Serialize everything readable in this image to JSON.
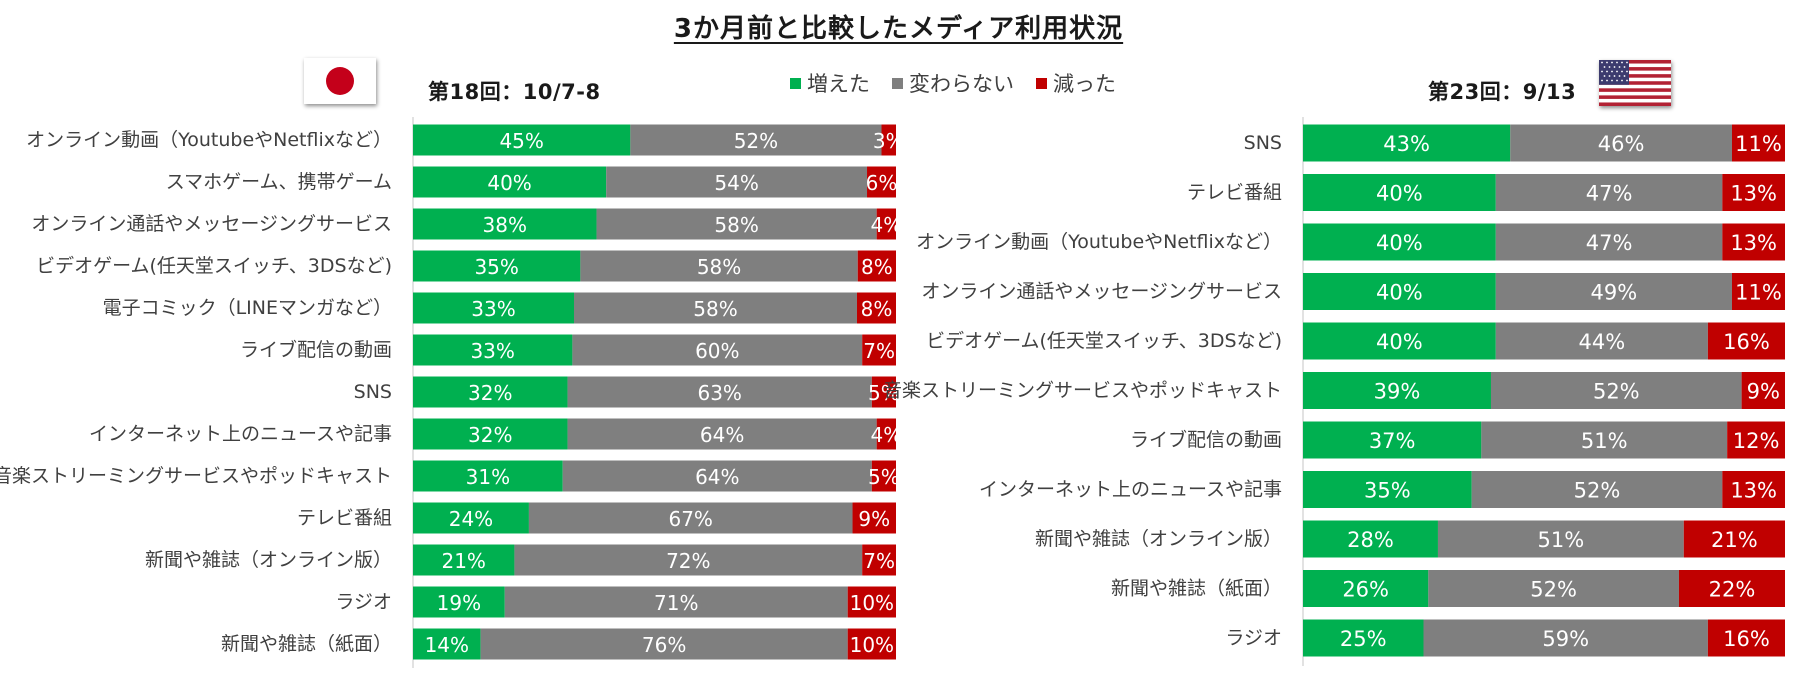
{
  "title": "3か月前と比較したメディア利用状況",
  "colors": {
    "increased": "#00b050",
    "unchanged": "#7f7f7f",
    "decreased": "#c00000",
    "axis": "#d9d9d9"
  },
  "legend": [
    {
      "label": "増えた",
      "color": "#00b050"
    },
    {
      "label": "変わらない",
      "color": "#7f7f7f"
    },
    {
      "label": "減った",
      "color": "#c00000"
    }
  ],
  "japan": {
    "round_label": "第18回：10/7-8",
    "flag_icon": "japan-flag-icon"
  },
  "usa": {
    "round_label": "第23回：9/13",
    "flag_icon": "us-flag-icon"
  },
  "chart_data": [
    {
      "type": "bar",
      "stacked": true,
      "orientation": "horizontal",
      "normalized_percent": true,
      "region": "japan",
      "categories": [
        "オンライン動画（YoutubeやNetflixなど）",
        "スマホゲーム、携帯ゲーム",
        "オンライン通話やメッセージングサービス",
        "ビデオゲーム(任天堂スイッチ、3DSなど)",
        "電子コミック（LINEマンガなど）",
        "ライブ配信の動画",
        "SNS",
        "インターネット上のニュースや記事",
        "音楽ストリーミングサービスやポッドキャスト",
        "テレビ番組",
        "新聞や雑誌（オンライン版）",
        "ラジオ",
        "新聞や雑誌（紙面）"
      ],
      "series": [
        {
          "name": "増えた",
          "color": "#00b050",
          "values": [
            45,
            40,
            38,
            35,
            33,
            33,
            32,
            32,
            31,
            24,
            21,
            19,
            14
          ]
        },
        {
          "name": "変わらない",
          "color": "#7f7f7f",
          "values": [
            52,
            54,
            58,
            58,
            58,
            60,
            63,
            64,
            64,
            67,
            72,
            71,
            76
          ]
        },
        {
          "name": "減った",
          "color": "#c00000",
          "values": [
            3,
            6,
            4,
            8,
            8,
            7,
            5,
            4,
            5,
            9,
            7,
            10,
            10
          ]
        }
      ],
      "value_format": "{v}%",
      "grid": false
    },
    {
      "type": "bar",
      "stacked": true,
      "orientation": "horizontal",
      "normalized_percent": true,
      "region": "usa",
      "categories": [
        "SNS",
        "テレビ番組",
        "オンライン動画（YoutubeやNetflixなど）",
        "オンライン通話やメッセージングサービス",
        "ビデオゲーム(任天堂スイッチ、3DSなど)",
        "音楽ストリーミングサービスやポッドキャスト",
        "ライブ配信の動画",
        "インターネット上のニュースや記事",
        "新聞や雑誌（オンライン版）",
        "新聞や雑誌（紙面）",
        "ラジオ"
      ],
      "series": [
        {
          "name": "増えた",
          "color": "#00b050",
          "values": [
            43,
            40,
            40,
            40,
            40,
            39,
            37,
            35,
            28,
            26,
            25
          ]
        },
        {
          "name": "変わらない",
          "color": "#7f7f7f",
          "values": [
            46,
            47,
            47,
            49,
            44,
            52,
            51,
            52,
            51,
            52,
            59
          ]
        },
        {
          "name": "減った",
          "color": "#c00000",
          "values": [
            11,
            13,
            13,
            11,
            16,
            9,
            12,
            13,
            21,
            22,
            16
          ]
        }
      ],
      "value_format": "{v}%",
      "grid": false
    }
  ]
}
